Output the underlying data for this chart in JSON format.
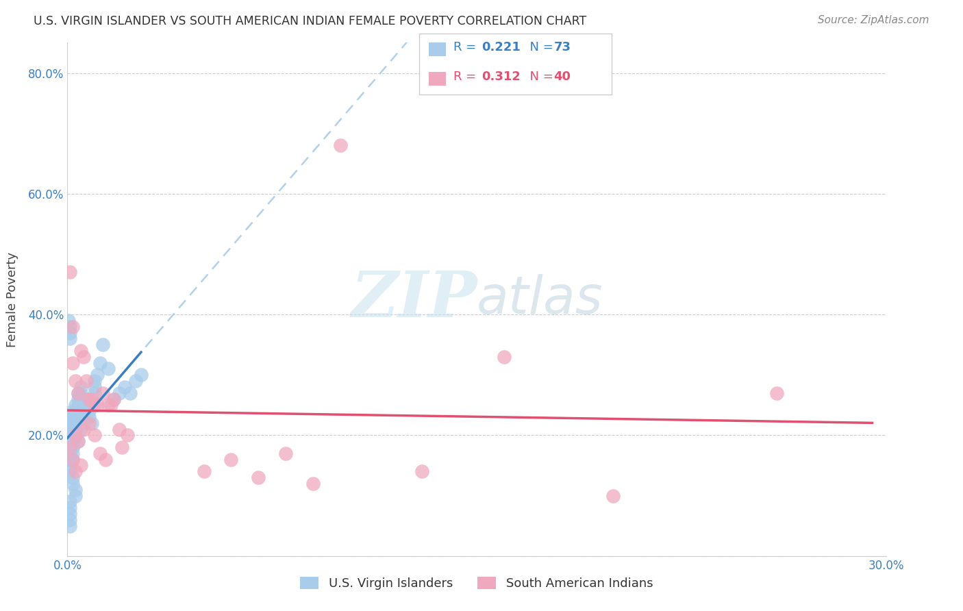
{
  "title": "U.S. VIRGIN ISLANDER VS SOUTH AMERICAN INDIAN FEMALE POVERTY CORRELATION CHART",
  "source": "Source: ZipAtlas.com",
  "ylabel": "Female Poverty",
  "legend_label1": "U.S. Virgin Islanders",
  "legend_label2": "South American Indians",
  "R1": 0.221,
  "N1": 73,
  "R2": 0.312,
  "N2": 40,
  "xlim": [
    0.0,
    0.3
  ],
  "ylim": [
    0.0,
    0.85
  ],
  "ytick_positions": [
    0.0,
    0.2,
    0.4,
    0.6,
    0.8
  ],
  "ytick_labels": [
    "",
    "20.0%",
    "40.0%",
    "60.0%",
    "80.0%"
  ],
  "xtick_positions": [
    0.0,
    0.05,
    0.1,
    0.15,
    0.2,
    0.25,
    0.3
  ],
  "xtick_labels": [
    "0.0%",
    "",
    "",
    "",
    "",
    "",
    "30.0%"
  ],
  "color_blue": "#A8CCEA",
  "color_pink": "#F0A8BE",
  "line_color_blue": "#3A7FC1",
  "line_color_pink": "#E05070",
  "line_color_blue_dash": "#A8CCEA",
  "watermark_zip": "ZIP",
  "watermark_atlas": "atlas",
  "background_color": "#FFFFFF",
  "blue_x": [
    0.0005,
    0.001,
    0.001,
    0.001,
    0.001,
    0.001,
    0.001,
    0.001,
    0.001,
    0.0015,
    0.002,
    0.002,
    0.002,
    0.002,
    0.002,
    0.002,
    0.002,
    0.003,
    0.003,
    0.003,
    0.003,
    0.003,
    0.004,
    0.004,
    0.004,
    0.004,
    0.005,
    0.005,
    0.005,
    0.005,
    0.006,
    0.006,
    0.007,
    0.007,
    0.008,
    0.008,
    0.009,
    0.01,
    0.01,
    0.011,
    0.012,
    0.013,
    0.001,
    0.001,
    0.001,
    0.001,
    0.002,
    0.002,
    0.003,
    0.003,
    0.001,
    0.001,
    0.002,
    0.002,
    0.001,
    0.001,
    0.001,
    0.001,
    0.001,
    0.002,
    0.002,
    0.003,
    0.004,
    0.005,
    0.007,
    0.01,
    0.015,
    0.017,
    0.019,
    0.021,
    0.023,
    0.025,
    0.027
  ],
  "blue_y": [
    0.39,
    0.38,
    0.37,
    0.36,
    0.21,
    0.2,
    0.22,
    0.19,
    0.18,
    0.23,
    0.24,
    0.23,
    0.22,
    0.21,
    0.2,
    0.19,
    0.18,
    0.25,
    0.24,
    0.23,
    0.22,
    0.21,
    0.27,
    0.26,
    0.25,
    0.24,
    0.28,
    0.27,
    0.26,
    0.25,
    0.24,
    0.23,
    0.26,
    0.25,
    0.24,
    0.23,
    0.22,
    0.28,
    0.27,
    0.3,
    0.32,
    0.35,
    0.17,
    0.16,
    0.15,
    0.14,
    0.13,
    0.12,
    0.11,
    0.1,
    0.22,
    0.2,
    0.19,
    0.18,
    0.09,
    0.08,
    0.07,
    0.06,
    0.05,
    0.17,
    0.16,
    0.2,
    0.19,
    0.21,
    0.26,
    0.29,
    0.31,
    0.26,
    0.27,
    0.28,
    0.27,
    0.29,
    0.3
  ],
  "pink_x": [
    0.001,
    0.001,
    0.002,
    0.002,
    0.003,
    0.003,
    0.004,
    0.005,
    0.005,
    0.006,
    0.007,
    0.008,
    0.009,
    0.01,
    0.011,
    0.013,
    0.015,
    0.017,
    0.019,
    0.002,
    0.003,
    0.004,
    0.006,
    0.008,
    0.01,
    0.012,
    0.014,
    0.016,
    0.02,
    0.022,
    0.05,
    0.06,
    0.07,
    0.08,
    0.09,
    0.1,
    0.13,
    0.16,
    0.2,
    0.26
  ],
  "pink_y": [
    0.47,
    0.18,
    0.32,
    0.16,
    0.29,
    0.14,
    0.27,
    0.34,
    0.15,
    0.33,
    0.29,
    0.26,
    0.26,
    0.25,
    0.25,
    0.27,
    0.25,
    0.26,
    0.21,
    0.38,
    0.2,
    0.19,
    0.21,
    0.22,
    0.2,
    0.17,
    0.16,
    0.25,
    0.18,
    0.2,
    0.14,
    0.16,
    0.13,
    0.17,
    0.12,
    0.68,
    0.14,
    0.33,
    0.1,
    0.27
  ]
}
